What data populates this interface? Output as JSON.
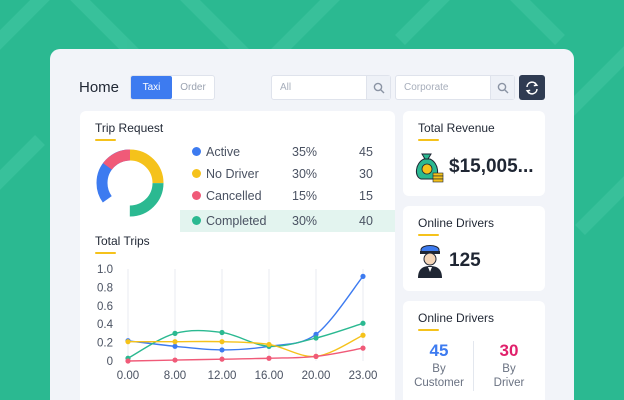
{
  "header": {
    "title": "Home",
    "toggle": [
      "Taxi",
      "Order"
    ],
    "filter_placeholder": "All",
    "corporate_placeholder": "Corporate"
  },
  "trip_request": {
    "title": "Trip Request",
    "items": [
      {
        "label": "Active",
        "percent": "35%",
        "count": "45",
        "color": "#3d7bf0"
      },
      {
        "label": "No Driver",
        "percent": "30%",
        "count": "30",
        "color": "#f5c21b"
      },
      {
        "label": "Cancelled",
        "percent": "15%",
        "count": "15",
        "color": "#f05a78"
      },
      {
        "label": "Completed",
        "percent": "30%",
        "count": "40",
        "color": "#2bb991"
      }
    ]
  },
  "total_trips": {
    "title": "Total Trips",
    "chart_data": {
      "type": "line",
      "x_ticks": [
        "0.00",
        "8.00",
        "12.00",
        "16.00",
        "20.00",
        "23.00"
      ],
      "y_ticks": [
        "1.0",
        "0.8",
        "0.6",
        "0.4",
        "0.2",
        "0"
      ],
      "ylim": [
        0,
        1.0
      ],
      "series": [
        {
          "color": "#3d7bf0",
          "values": [
            0.22,
            0.16,
            0.12,
            0.16,
            0.29,
            0.92
          ]
        },
        {
          "color": "#2bb991",
          "values": [
            0.03,
            0.3,
            0.31,
            0.16,
            0.25,
            0.41
          ]
        },
        {
          "color": "#f5c21b",
          "values": [
            0.21,
            0.21,
            0.21,
            0.18,
            0.05,
            0.28
          ]
        },
        {
          "color": "#f05a78",
          "values": [
            0.0,
            0.01,
            0.02,
            0.03,
            0.05,
            0.14
          ]
        }
      ]
    }
  },
  "revenue": {
    "title": "Total Revenue",
    "value": "$15,005..."
  },
  "online_drivers": {
    "title": "Online Drivers",
    "value": "125"
  },
  "online_drivers_split": {
    "title": "Online Drivers",
    "customer": {
      "value": "45",
      "label_top": "By",
      "label_bottom": "Customer",
      "color": "#3d7bf0"
    },
    "driver": {
      "value": "30",
      "label_top": "By",
      "label_bottom": "Driver",
      "color": "#e0206b"
    }
  },
  "colors": {
    "accent": "#3d7bf0",
    "brand": "#2bb991",
    "underline": "#f5c21b"
  }
}
